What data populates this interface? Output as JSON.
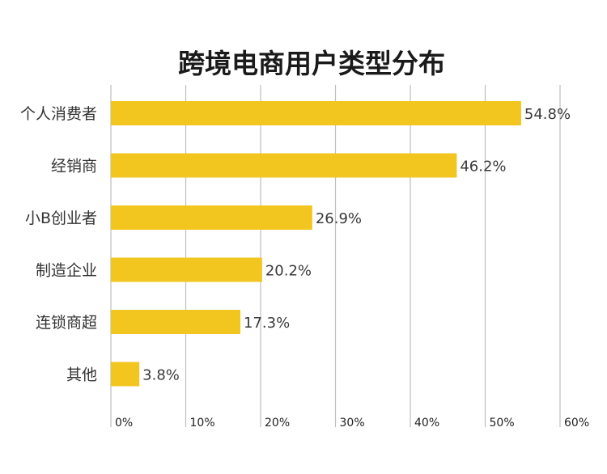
{
  "chart_data": {
    "type": "bar",
    "orientation": "horizontal",
    "title": "跨境电商用户类型分布",
    "categories": [
      "个人消费者",
      "经销商",
      "小B创业者",
      "制造企业",
      "连锁商超",
      "其他"
    ],
    "values": [
      54.8,
      46.2,
      26.9,
      20.2,
      17.3,
      3.8
    ],
    "value_labels": [
      "54.8%",
      "46.2%",
      "26.9%",
      "20.2%",
      "17.3%",
      "3.8%"
    ],
    "xlim": [
      0,
      60
    ],
    "x_ticks": [
      0,
      10,
      20,
      30,
      40,
      50,
      60
    ],
    "x_tick_labels": [
      "0%",
      "10%",
      "20%",
      "30%",
      "40%",
      "50%",
      "60%"
    ],
    "xlabel": "",
    "ylabel": "",
    "grid": true,
    "legend": "none",
    "colors": {
      "bar": "#F2C51F",
      "grid": "#BFBFBF",
      "title": "#1A1A1A",
      "text": "#333333"
    }
  }
}
